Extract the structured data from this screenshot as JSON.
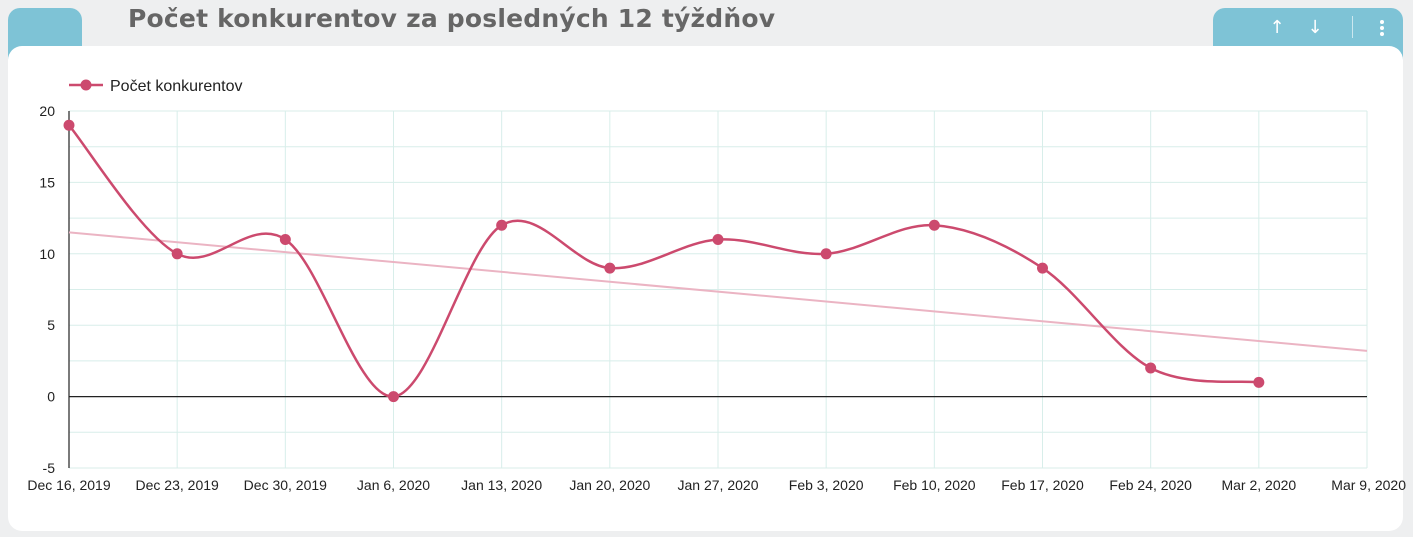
{
  "header": {
    "title": "Počet konkurentov za posledných 12 týždňov"
  },
  "controls": {
    "up_label": "↑",
    "down_label": "↓"
  },
  "colors": {
    "accent": "#7ec3d6",
    "series": "#cc4a6e",
    "trend": "#ebb4c3",
    "grid": "#d8eeea"
  },
  "chart_data": {
    "type": "line",
    "title": "Počet konkurentov za posledných 12 týždňov",
    "legend": {
      "position": "top-left"
    },
    "grid": true,
    "x": [
      "Dec 16, 2019",
      "Dec 23, 2019",
      "Dec 30, 2019",
      "Jan 6, 2020",
      "Jan 13, 2020",
      "Jan 20, 2020",
      "Jan 27, 2020",
      "Feb 3, 2020",
      "Feb 10, 2020",
      "Feb 17, 2020",
      "Feb 24, 2020",
      "Mar 2, 2020"
    ],
    "x_ticks": [
      "Dec 16, 2019",
      "Dec 23, 2019",
      "Dec 30, 2019",
      "Jan 6, 2020",
      "Jan 13, 2020",
      "Jan 20, 2020",
      "Jan 27, 2020",
      "Feb 3, 2020",
      "Feb 10, 2020",
      "Feb 17, 2020",
      "Feb 24, 2020",
      "Mar 2, 2020",
      "Mar 9, 2020"
    ],
    "ylim": [
      -5,
      20
    ],
    "y_ticks": [
      -5,
      0,
      5,
      10,
      15,
      20
    ],
    "series": [
      {
        "name": "Počet konkurentov",
        "values": [
          19,
          10,
          11,
          0,
          12,
          9,
          11,
          10,
          12,
          9,
          2,
          1
        ]
      }
    ],
    "trendline": {
      "start": 11.5,
      "end": 3.2
    }
  }
}
